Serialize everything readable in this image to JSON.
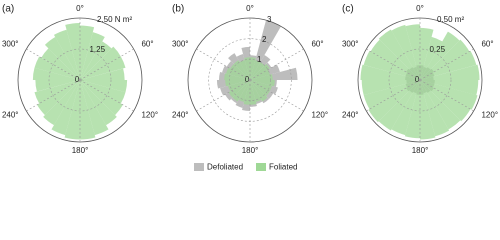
{
  "chart_data": [
    {
      "type": "rose",
      "label": "(a)",
      "rlim": [
        0,
        2.5
      ],
      "rticks": [
        0,
        1.25,
        {
          "value": 2.5,
          "label": "2.50 N m²"
        }
      ],
      "thetaticks": [
        {
          "value": 0,
          "label": "0°"
        },
        {
          "value": 60,
          "label": "60°"
        },
        {
          "value": 120,
          "label": "120°"
        },
        {
          "value": 180,
          "label": "180°"
        },
        {
          "value": 240,
          "label": "240°"
        },
        {
          "value": 300,
          "label": "300°"
        }
      ],
      "series": [
        {
          "color": "#bdbdbd",
          "values": [
            0.1,
            0.12,
            0.1,
            0.08,
            0.1,
            0.12,
            0.15,
            0.1,
            0.08,
            0.1,
            0.1,
            0.12,
            0.1,
            0.08,
            0.1,
            0.1,
            0.12,
            0.1,
            0.1,
            0.08,
            0.1,
            0.12,
            0.1,
            0.1
          ]
        },
        {
          "color": "#9fd896",
          "values": [
            2.2,
            2.0,
            1.8,
            1.9,
            1.9,
            1.8,
            1.9,
            1.9,
            2.0,
            2.1,
            2.3,
            2.4,
            2.4,
            2.3,
            2.1,
            2.0,
            1.9,
            1.8,
            1.9,
            1.9,
            1.8,
            2.0,
            2.1,
            2.3
          ]
        }
      ]
    },
    {
      "type": "rose",
      "label": "(b)",
      "rlim": [
        0,
        3
      ],
      "rticks": [
        0,
        1,
        2,
        3
      ],
      "thetaticks": [
        {
          "value": 0,
          "label": "0°"
        },
        {
          "value": 60,
          "label": "60°"
        },
        {
          "value": 120,
          "label": "120°"
        },
        {
          "value": 180,
          "label": "180°"
        },
        {
          "value": 240,
          "label": "240°"
        },
        {
          "value": 300,
          "label": "300°"
        }
      ],
      "legend": "bottom",
      "series": [
        {
          "name": "Defoliated",
          "color": "#bdbdbd",
          "values": [
            1.2,
            3.0,
            1.4,
            1.2,
            1.5,
            2.3,
            1.3,
            1.4,
            1.3,
            1.3,
            1.2,
            1.3,
            1.5,
            1.4,
            1.3,
            1.4,
            1.5,
            1.6,
            1.5,
            1.4,
            1.3,
            1.5,
            1.3,
            1.6
          ]
        },
        {
          "name": "Foliated",
          "color": "#9fd896",
          "values": [
            1.1,
            1.0,
            1.0,
            1.1,
            1.0,
            1.1,
            1.2,
            1.1,
            1.1,
            1.2,
            1.1,
            1.2,
            1.2,
            1.1,
            1.2,
            1.2,
            1.1,
            1.2,
            1.25,
            1.2,
            1.1,
            1.1,
            1.0,
            1.1
          ]
        }
      ]
    },
    {
      "type": "rose",
      "label": "(c)",
      "rlim": [
        0,
        0.5
      ],
      "rticks": [
        0,
        0.25,
        {
          "value": 0.5,
          "label": "0.50 m²"
        }
      ],
      "thetaticks": [
        {
          "value": 0,
          "label": "0°"
        },
        {
          "value": 60,
          "label": "60°"
        },
        {
          "value": 120,
          "label": "120°"
        },
        {
          "value": 180,
          "label": "180°"
        },
        {
          "value": 240,
          "label": "240°"
        },
        {
          "value": 300,
          "label": "300°"
        }
      ],
      "series": [
        {
          "color": "#bdbdbd",
          "values": [
            0.12,
            0.11,
            0.12,
            0.13,
            0.12,
            0.11,
            0.12,
            0.12,
            0.13,
            0.12,
            0.11,
            0.12,
            0.12,
            0.11,
            0.12,
            0.13,
            0.12,
            0.11,
            0.12,
            0.12,
            0.13,
            0.12,
            0.11,
            0.12
          ]
        },
        {
          "color": "#9fd896",
          "values": [
            0.42,
            0.36,
            0.45,
            0.46,
            0.47,
            0.48,
            0.47,
            0.48,
            0.47,
            0.46,
            0.47,
            0.48,
            0.47,
            0.46,
            0.47,
            0.48,
            0.47,
            0.47,
            0.48,
            0.47,
            0.46,
            0.47,
            0.46,
            0.45
          ]
        }
      ]
    }
  ]
}
